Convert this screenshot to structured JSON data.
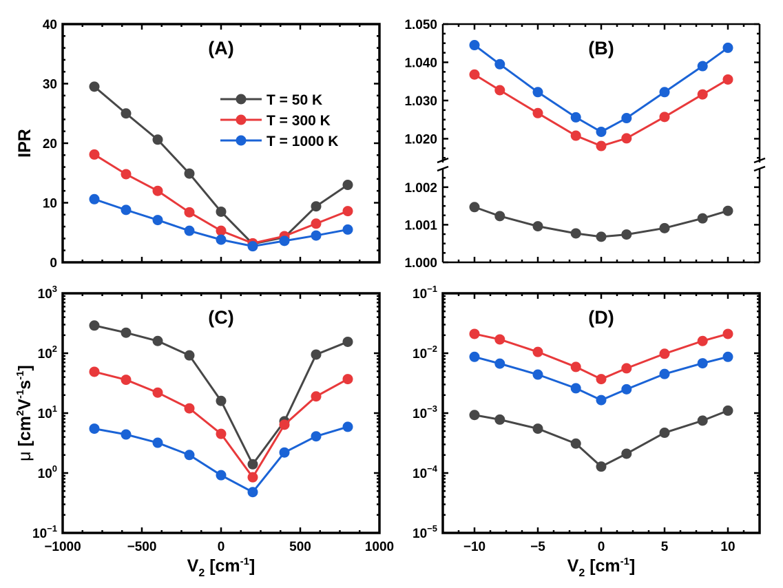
{
  "chart_data": [
    {
      "id": "A",
      "type": "line",
      "panel_label": "(A)",
      "title": "",
      "xlabel": "",
      "ylabel": "IPR",
      "xscale": "linear",
      "yscale": "linear",
      "xlim": [
        -1000,
        1000
      ],
      "ylim": [
        0,
        40
      ],
      "xticks": [
        -1000,
        -500,
        0,
        500,
        1000
      ],
      "xtick_labels_shown": false,
      "yticks": [
        0,
        10,
        20,
        30,
        40
      ],
      "ytick_labels": [
        "0",
        "10",
        "20",
        "30",
        "40"
      ],
      "x": [
        -800,
        -600,
        -400,
        -200,
        0,
        200,
        400,
        600,
        800
      ],
      "series": [
        {
          "name": "T = 50 K",
          "color": "#474747",
          "values": [
            29.5,
            25.0,
            20.6,
            14.9,
            8.5,
            3.1,
            4.2,
            9.4,
            13.0
          ]
        },
        {
          "name": "T = 300 K",
          "color": "#e8393b",
          "values": [
            18.1,
            14.8,
            12.0,
            8.4,
            5.3,
            3.2,
            4.4,
            6.5,
            8.6
          ]
        },
        {
          "name": "T = 1000 K",
          "color": "#1a63d6",
          "values": [
            10.6,
            8.8,
            7.1,
            5.3,
            3.8,
            2.7,
            3.6,
            4.5,
            5.5
          ]
        }
      ],
      "legend": {
        "placement": "upper-right",
        "entries": [
          "T = 50 K",
          "T = 300 K",
          "T = 1000 K"
        ]
      },
      "grid": false
    },
    {
      "id": "B",
      "type": "line",
      "panel_label": "(B)",
      "title": "",
      "xlabel": "",
      "ylabel": "",
      "xscale": "linear",
      "yscale": "linear-broken",
      "xlim": [
        -12.5,
        12.5
      ],
      "ylim": [
        1.0,
        1.05
      ],
      "y_break": {
        "lower_segment": [
          1.0,
          1.0024
        ],
        "upper_segment": [
          1.0145,
          1.05
        ]
      },
      "xticks": [
        -10,
        -5,
        0,
        5,
        10
      ],
      "xtick_labels_shown": false,
      "yticks": [
        1.0,
        1.001,
        1.002,
        1.02,
        1.03,
        1.04,
        1.05
      ],
      "ytick_labels": [
        "1.000",
        "1.001",
        "1.002",
        "1.020",
        "1.030",
        "1.040",
        "1.050"
      ],
      "x": [
        -10,
        -8,
        -5,
        -2,
        0,
        2,
        5,
        8,
        10
      ],
      "series": [
        {
          "name": "T = 50 K",
          "color": "#474747",
          "values": [
            1.00147,
            1.00123,
            1.00096,
            1.00077,
            1.00068,
            1.00074,
            1.00091,
            1.00117,
            1.00137
          ]
        },
        {
          "name": "T = 300 K",
          "color": "#e8393b",
          "values": [
            1.0368,
            1.0327,
            1.0267,
            1.0208,
            1.0181,
            1.0201,
            1.0257,
            1.0316,
            1.0355
          ]
        },
        {
          "name": "T = 1000 K",
          "color": "#1a63d6",
          "values": [
            1.0445,
            1.0395,
            1.0322,
            1.0256,
            1.0218,
            1.0254,
            1.0322,
            1.039,
            1.0438
          ]
        }
      ],
      "grid": false
    },
    {
      "id": "C",
      "type": "line",
      "panel_label": "(C)",
      "title": "",
      "xlabel": "V₂ [cm⁻¹]",
      "ylabel": "μ [cm²V⁻¹s⁻¹]",
      "xscale": "linear",
      "yscale": "log",
      "xlim": [
        -1000,
        1000
      ],
      "ylim": [
        0.1,
        1000
      ],
      "xticks": [
        -1000,
        -500,
        0,
        500,
        1000
      ],
      "xtick_labels": [
        "−1000",
        "−500",
        "0",
        "500",
        "1000"
      ],
      "yticks": [
        0.1,
        1,
        10,
        100,
        1000
      ],
      "ytick_labels": [
        [
          "10",
          "−1"
        ],
        [
          "10",
          "0"
        ],
        [
          "10",
          "1"
        ],
        [
          "10",
          "2"
        ],
        [
          "10",
          "3"
        ]
      ],
      "x": [
        -800,
        -600,
        -400,
        -200,
        0,
        200,
        400,
        600,
        800
      ],
      "series": [
        {
          "name": "T = 50 K",
          "color": "#474747",
          "values": [
            290,
            220,
            160,
            92,
            16,
            1.4,
            7.3,
            95,
            155
          ]
        },
        {
          "name": "T = 300 K",
          "color": "#e8393b",
          "values": [
            49,
            36,
            22,
            12,
            4.5,
            0.85,
            6.4,
            19,
            37
          ]
        },
        {
          "name": "T = 1000 K",
          "color": "#1a63d6",
          "values": [
            5.5,
            4.4,
            3.2,
            2.0,
            0.92,
            0.48,
            2.2,
            4.1,
            5.9
          ]
        }
      ],
      "grid": false
    },
    {
      "id": "D",
      "type": "line",
      "panel_label": "(D)",
      "title": "",
      "xlabel": "V₂ [cm⁻¹]",
      "ylabel": "",
      "xscale": "linear",
      "yscale": "log",
      "xlim": [
        -12.5,
        12.5
      ],
      "ylim": [
        1e-05,
        0.1
      ],
      "xticks": [
        -10,
        -5,
        0,
        5,
        10
      ],
      "xtick_labels": [
        "−10",
        "−5",
        "0",
        "5",
        "10"
      ],
      "yticks": [
        1e-05,
        0.0001,
        0.001,
        0.01,
        0.1
      ],
      "ytick_labels": [
        [
          "10",
          "−5"
        ],
        [
          "10",
          "−4"
        ],
        [
          "10",
          "−3"
        ],
        [
          "10",
          "−2"
        ],
        [
          "10",
          "−1"
        ]
      ],
      "x": [
        -10,
        -8,
        -5,
        -2,
        0,
        2,
        5,
        8,
        10
      ],
      "series": [
        {
          "name": "T = 50 K",
          "color": "#474747",
          "values": [
            0.00093,
            0.00078,
            0.00055,
            0.00031,
            0.000128,
            0.00021,
            0.00047,
            0.00075,
            0.0011
          ]
        },
        {
          "name": "T = 300 K",
          "color": "#e8393b",
          "values": [
            0.021,
            0.017,
            0.0105,
            0.0059,
            0.0037,
            0.0056,
            0.0098,
            0.016,
            0.021
          ]
        },
        {
          "name": "T = 1000 K",
          "color": "#1a63d6",
          "values": [
            0.0087,
            0.0067,
            0.0044,
            0.0026,
            0.00165,
            0.0025,
            0.0045,
            0.0068,
            0.0087
          ]
        }
      ],
      "grid": false
    }
  ],
  "axis_text": {
    "ylabel_A": "IPR",
    "ylabel_C_mu": "μ",
    "ylabel_C_open": " [cm",
    "ylabel_C_sup1": "2",
    "ylabel_C_mid1": "V",
    "ylabel_C_sup2": "-1",
    "ylabel_C_mid2": "s",
    "ylabel_C_sup3": "-1",
    "ylabel_C_close": "]",
    "xlabel_V": "V",
    "xlabel_sub": "2",
    "xlabel_open": " [cm",
    "xlabel_sup": "-1",
    "xlabel_close": "]"
  }
}
